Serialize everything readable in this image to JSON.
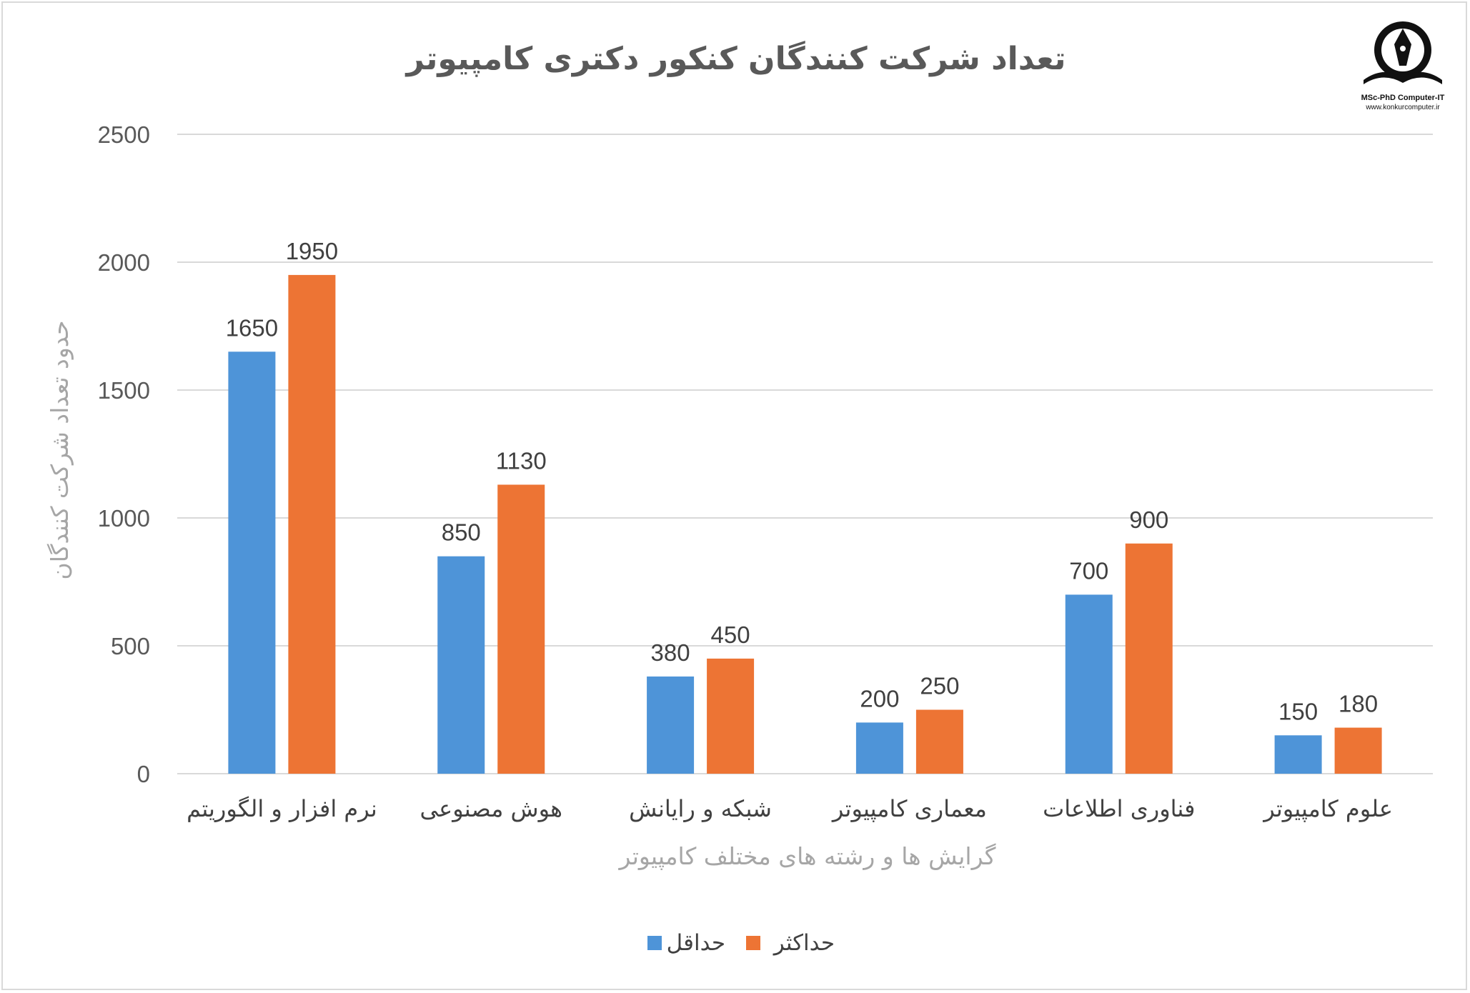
{
  "chart_data": {
    "type": "bar",
    "title": "تعداد شرکت کنندگان کنکور دکتری کامپیوتر",
    "xlabel": "گرایش ها و رشته های مختلف کامپیوتر",
    "ylabel": "حدود تعداد شرکت کنندگان",
    "categories": [
      "نرم افزار و الگوریتم",
      "هوش مصنوعی",
      "شبکه و رایانش",
      "معماری کامپیوتر",
      "فناوری اطلاعات",
      "علوم کامپیوتر"
    ],
    "series": [
      {
        "name": "حداقل",
        "color": "#4e94d8",
        "values": [
          1650,
          850,
          380,
          200,
          700,
          150
        ]
      },
      {
        "name": "حداکثر",
        "color": "#ed7434",
        "values": [
          1950,
          1130,
          450,
          250,
          900,
          180
        ]
      }
    ],
    "ylim": [
      0,
      2500
    ],
    "yticks": [
      0,
      500,
      1000,
      1500,
      2000,
      2500
    ],
    "grid": true,
    "legend": "bottom",
    "data_labels": true
  },
  "logo": {
    "line1": "MSc-PhD Computer-IT",
    "line2": "www.konkurcomputer.ir"
  }
}
